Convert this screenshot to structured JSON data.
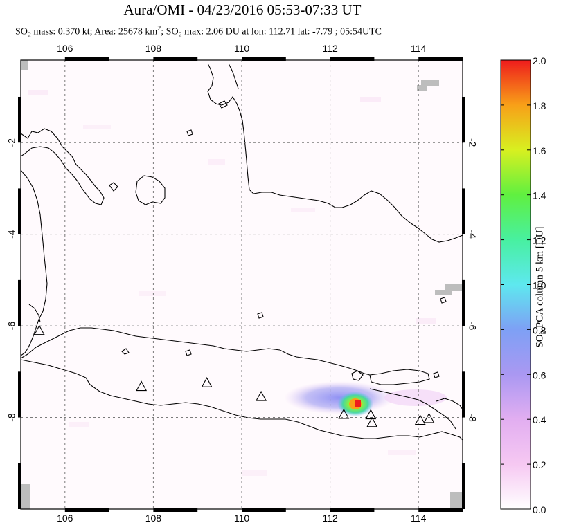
{
  "title": "Aura/OMI - 04/23/2016 05:53-07:33 UT",
  "subtitle": {
    "so2_label": "SO",
    "so2_sub": "2",
    "mass_text": " mass: 0.370 kt; Area: 25678 km",
    "area_sup": "2",
    "rest_text": "; SO",
    "max_sub": "2",
    "max_text": " max: 2.06 DU at lon: 112.71 lat: -7.79 ; 05:54UTC"
  },
  "map": {
    "lon_range": [
      105,
      115
    ],
    "lat_range": [
      -10,
      -0.2
    ],
    "lon_ticks": [
      "106",
      "108",
      "110",
      "112",
      "114"
    ],
    "lat_ticks_left": [
      "-2",
      "-4",
      "-6",
      "-8"
    ],
    "lat_ticks_right": [
      "-2",
      "-4",
      "-6",
      "-8"
    ],
    "grid": "dotted",
    "volcanoes": [
      {
        "lon": 105.42,
        "lat": -6.1
      },
      {
        "lon": 107.73,
        "lat": -7.32
      },
      {
        "lon": 109.21,
        "lat": -7.24
      },
      {
        "lon": 110.44,
        "lat": -7.54
      },
      {
        "lon": 112.31,
        "lat": -7.93
      },
      {
        "lon": 112.92,
        "lat": -7.94
      },
      {
        "lon": 112.95,
        "lat": -8.11
      },
      {
        "lon": 114.04,
        "lat": -8.06
      },
      {
        "lon": 114.24,
        "lat": -8.02
      }
    ],
    "plume_peak": {
      "lon": 112.71,
      "lat": -7.79,
      "value": 2.06
    }
  },
  "colorbar": {
    "label_prefix": "SO",
    "label_sub": "2",
    "label_suffix": " PCA column 5 km [DU]",
    "ticks": [
      "0.0",
      "0.2",
      "0.4",
      "0.6",
      "0.8",
      "1.0",
      "1.2",
      "1.4",
      "1.6",
      "1.8",
      "2.0"
    ],
    "colors": [
      "#ffffff",
      "#f6c8f2",
      "#d8a6f0",
      "#8a8cf4",
      "#5fb3f7",
      "#5ee8ef",
      "#48f08a",
      "#90f03a",
      "#e8f020",
      "#f89a18",
      "#ee1c1c"
    ]
  }
}
